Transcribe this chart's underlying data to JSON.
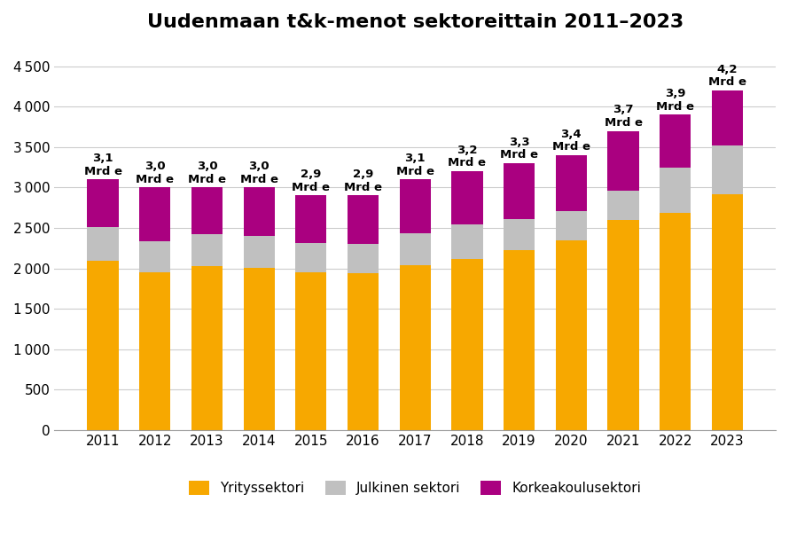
{
  "title": "Uudenmaan t&k-menot sektoreittain 2011–2023",
  "years": [
    2011,
    2012,
    2013,
    2014,
    2015,
    2016,
    2017,
    2018,
    2019,
    2020,
    2021,
    2022,
    2023
  ],
  "yrityssektori": [
    2090,
    1950,
    2030,
    2010,
    1955,
    1940,
    2040,
    2115,
    2220,
    2350,
    2595,
    2690,
    2920
  ],
  "julkinen": [
    415,
    390,
    390,
    395,
    360,
    360,
    395,
    430,
    390,
    360,
    360,
    555,
    600
  ],
  "korkeakoulu": [
    595,
    660,
    580,
    595,
    585,
    600,
    665,
    655,
    690,
    690,
    745,
    655,
    680
  ],
  "totals_label": [
    "3,1",
    "3,0",
    "3,0",
    "3,0",
    "2,9",
    "2,9",
    "3,1",
    "3,2",
    "3,3",
    "3,4",
    "3,7",
    "3,9",
    "4,2"
  ],
  "color_yritys": "#F7A800",
  "color_julkinen": "#C0C0C0",
  "color_korkeakoulu": "#AA0080",
  "ylim_max": 4750,
  "yticks": [
    0,
    500,
    1000,
    1500,
    2000,
    2500,
    3000,
    3500,
    4000,
    4500
  ],
  "legend_labels": [
    "Yrityssektori",
    "Julkinen sektori",
    "Korkeakoulusektori"
  ],
  "background_color": "#FFFFFF",
  "title_fontsize": 16,
  "label_fontsize": 9.5,
  "tick_fontsize": 11,
  "bar_width": 0.6
}
